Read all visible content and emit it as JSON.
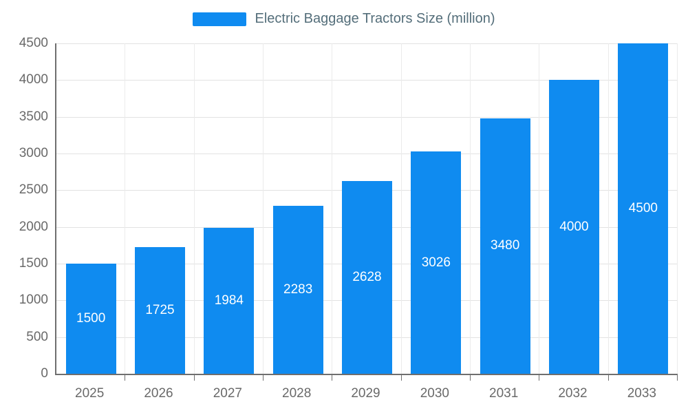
{
  "legend": {
    "label": "Electric Baggage Tractors Size (million)"
  },
  "colors": {
    "bar": "#0f8bf0",
    "bar_label": "#ffffff",
    "title_text": "#546e7a",
    "tick_text": "#696969",
    "grid": "#e2e2e2",
    "axis": "#6e6e6e"
  },
  "chart_data": {
    "type": "bar",
    "title": "Electric Baggage Tractors Size (million)",
    "categories": [
      "2025",
      "2026",
      "2027",
      "2028",
      "2029",
      "2030",
      "2031",
      "2032",
      "2033"
    ],
    "values": [
      1500,
      1725,
      1984,
      2283,
      2628,
      3026,
      3480,
      4000,
      4500
    ],
    "value_labels": [
      "1500",
      "1725",
      "1984",
      "2283",
      "2628",
      "3026",
      "3480",
      "4000",
      "4500"
    ],
    "xlabel": "",
    "ylabel": "",
    "ylim": [
      0,
      4500
    ],
    "ytick_step": 500,
    "yticks": [
      "0",
      "500",
      "1000",
      "1500",
      "2000",
      "2500",
      "3000",
      "3500",
      "4000",
      "4500"
    ],
    "grid": true,
    "legend_position": "top"
  }
}
